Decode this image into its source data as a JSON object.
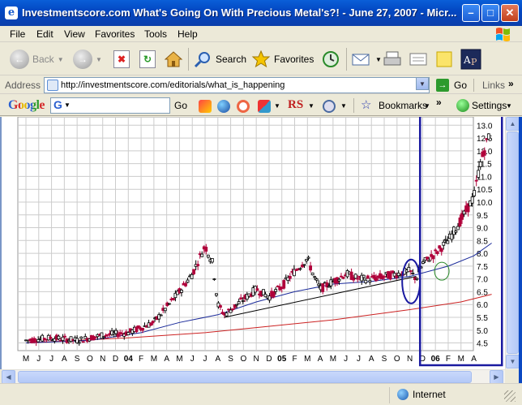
{
  "window": {
    "title": "Investmentscore.com What's Going On With Precious Metal's?! - June 27, 2007 - Micr...",
    "buttons": {
      "minimize": "–",
      "maximize": "□",
      "close": "✕"
    }
  },
  "menu": {
    "items": [
      "File",
      "Edit",
      "View",
      "Favorites",
      "Tools",
      "Help"
    ]
  },
  "toolbar": {
    "back_label": "Back",
    "search_label": "Search",
    "favorites_label": "Favorites"
  },
  "address": {
    "label": "Address",
    "url": "http://investmentscore.com/editorials/what_is_happening",
    "go_label": "Go",
    "links_label": "Links"
  },
  "googlebar": {
    "logo": "Google",
    "search_prefix": "G",
    "go_label": "Go",
    "rs_label": "RS",
    "bookmarks_label": "Bookmarks",
    "settings_label": "Settings"
  },
  "status": {
    "zone": "Internet"
  },
  "colors": {
    "price": "#000000",
    "down_candle": "#b0003a",
    "ma_short": "#1a2a9a",
    "ma_long": "#cc2222",
    "highlight": "#1a1aa0",
    "ellipse2": "#2a8a2a"
  },
  "chart_data": {
    "type": "candlestick",
    "title": "",
    "xlabel": "",
    "ylabel": "",
    "ylim": [
      4.2,
      13.2
    ],
    "y_ticks": [
      "13.0",
      "12.5",
      "12.0",
      "11.5",
      "11.0",
      "10.5",
      "10.0",
      "9.5",
      "9.0",
      "8.5",
      "8.0",
      "7.5",
      "7.0",
      "6.5",
      "6.0",
      "5.5",
      "5.0",
      "4.5"
    ],
    "x_tick_labels": [
      "M",
      "J",
      "J",
      "A",
      "S",
      "O",
      "N",
      "D",
      "04",
      "F",
      "M",
      "A",
      "M",
      "J",
      "J",
      "A",
      "S",
      "O",
      "N",
      "D",
      "05",
      "F",
      "M",
      "A",
      "M",
      "J",
      "J",
      "A",
      "S",
      "O",
      "N",
      "D",
      "06",
      "F",
      "M",
      "A"
    ],
    "bold_x_labels": [
      "04",
      "05",
      "06"
    ],
    "price_path": [
      [
        0,
        4.6
      ],
      [
        2,
        4.7
      ],
      [
        4,
        4.6
      ],
      [
        6,
        4.8
      ],
      [
        8,
        4.9
      ],
      [
        10,
        5.3
      ],
      [
        11,
        5.9
      ],
      [
        12,
        6.5
      ],
      [
        13,
        7.2
      ],
      [
        14,
        8.3
      ],
      [
        14.6,
        7.6
      ],
      [
        15,
        6.0
      ],
      [
        15.5,
        5.6
      ],
      [
        16,
        5.8
      ],
      [
        17,
        6.2
      ],
      [
        18,
        6.6
      ],
      [
        19,
        6.3
      ],
      [
        20,
        6.7
      ],
      [
        21,
        7.3
      ],
      [
        22,
        7.8
      ],
      [
        22.5,
        7.1
      ],
      [
        23,
        6.6
      ],
      [
        24,
        6.9
      ],
      [
        25,
        7.2
      ],
      [
        26,
        7.0
      ],
      [
        27,
        7.0
      ],
      [
        28,
        7.1
      ],
      [
        29,
        7.2
      ],
      [
        30,
        7.3
      ],
      [
        30.5,
        7.0
      ],
      [
        31,
        7.6
      ],
      [
        32,
        8.0
      ],
      [
        33,
        8.5
      ],
      [
        34,
        9.3
      ],
      [
        35,
        10.2
      ],
      [
        35.5,
        11.5
      ],
      [
        36,
        12.3
      ],
      [
        36.3,
        12.9
      ]
    ],
    "ma_short_path": [
      [
        0,
        4.5
      ],
      [
        5,
        4.6
      ],
      [
        9,
        4.9
      ],
      [
        12,
        5.3
      ],
      [
        15,
        5.6
      ],
      [
        18,
        6.1
      ],
      [
        21,
        6.5
      ],
      [
        24,
        6.8
      ],
      [
        27,
        6.9
      ],
      [
        30,
        7.1
      ],
      [
        33,
        7.5
      ],
      [
        35,
        7.9
      ],
      [
        36.4,
        8.4
      ]
    ],
    "ma_long_path": [
      [
        0,
        4.5
      ],
      [
        8,
        4.7
      ],
      [
        14,
        4.9
      ],
      [
        18,
        5.1
      ],
      [
        24,
        5.4
      ],
      [
        30,
        5.8
      ],
      [
        34,
        6.1
      ],
      [
        36.4,
        6.4
      ]
    ],
    "trendline": [
      [
        15.5,
        5.5
      ],
      [
        30.5,
        7.1
      ]
    ],
    "highlight_box_x": [
      30.8,
      37.2
    ],
    "ellipses": [
      {
        "cx": 30.1,
        "cy": 6.9,
        "name": "ellipse-blue"
      },
      {
        "cx": 32.5,
        "cy": 7.3,
        "name": "ellipse-green"
      }
    ],
    "legend": "none"
  }
}
